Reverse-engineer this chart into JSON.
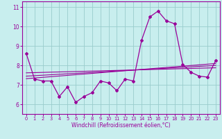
{
  "xlabel": "Windchill (Refroidissement éolien,°C)",
  "xlim": [
    -0.5,
    23.5
  ],
  "ylim": [
    5.5,
    11.3
  ],
  "yticks": [
    6,
    7,
    8,
    9,
    10,
    11
  ],
  "xticks": [
    0,
    1,
    2,
    3,
    4,
    5,
    6,
    7,
    8,
    9,
    10,
    11,
    12,
    13,
    14,
    15,
    16,
    17,
    18,
    19,
    20,
    21,
    22,
    23
  ],
  "bg_color": "#c8eeee",
  "line_color": "#990099",
  "grid_color": "#99cccc",
  "main_data_x": [
    0,
    1,
    2,
    3,
    4,
    5,
    6,
    7,
    8,
    9,
    10,
    11,
    12,
    13,
    14,
    15,
    16,
    17,
    18,
    19,
    20,
    21,
    22,
    23
  ],
  "main_data_y": [
    8.6,
    7.3,
    7.2,
    7.2,
    6.4,
    6.9,
    6.1,
    6.4,
    6.6,
    7.2,
    7.1,
    6.7,
    7.3,
    7.2,
    9.3,
    10.5,
    10.8,
    10.3,
    10.15,
    8.05,
    7.65,
    7.45,
    7.4,
    8.25
  ],
  "trend1_x": [
    0,
    23
  ],
  "trend1_y": [
    7.62,
    7.88
  ],
  "trend2_x": [
    0,
    23
  ],
  "trend2_y": [
    7.45,
    8.0
  ],
  "trend3_x": [
    0,
    23
  ],
  "trend3_y": [
    7.32,
    8.1
  ]
}
